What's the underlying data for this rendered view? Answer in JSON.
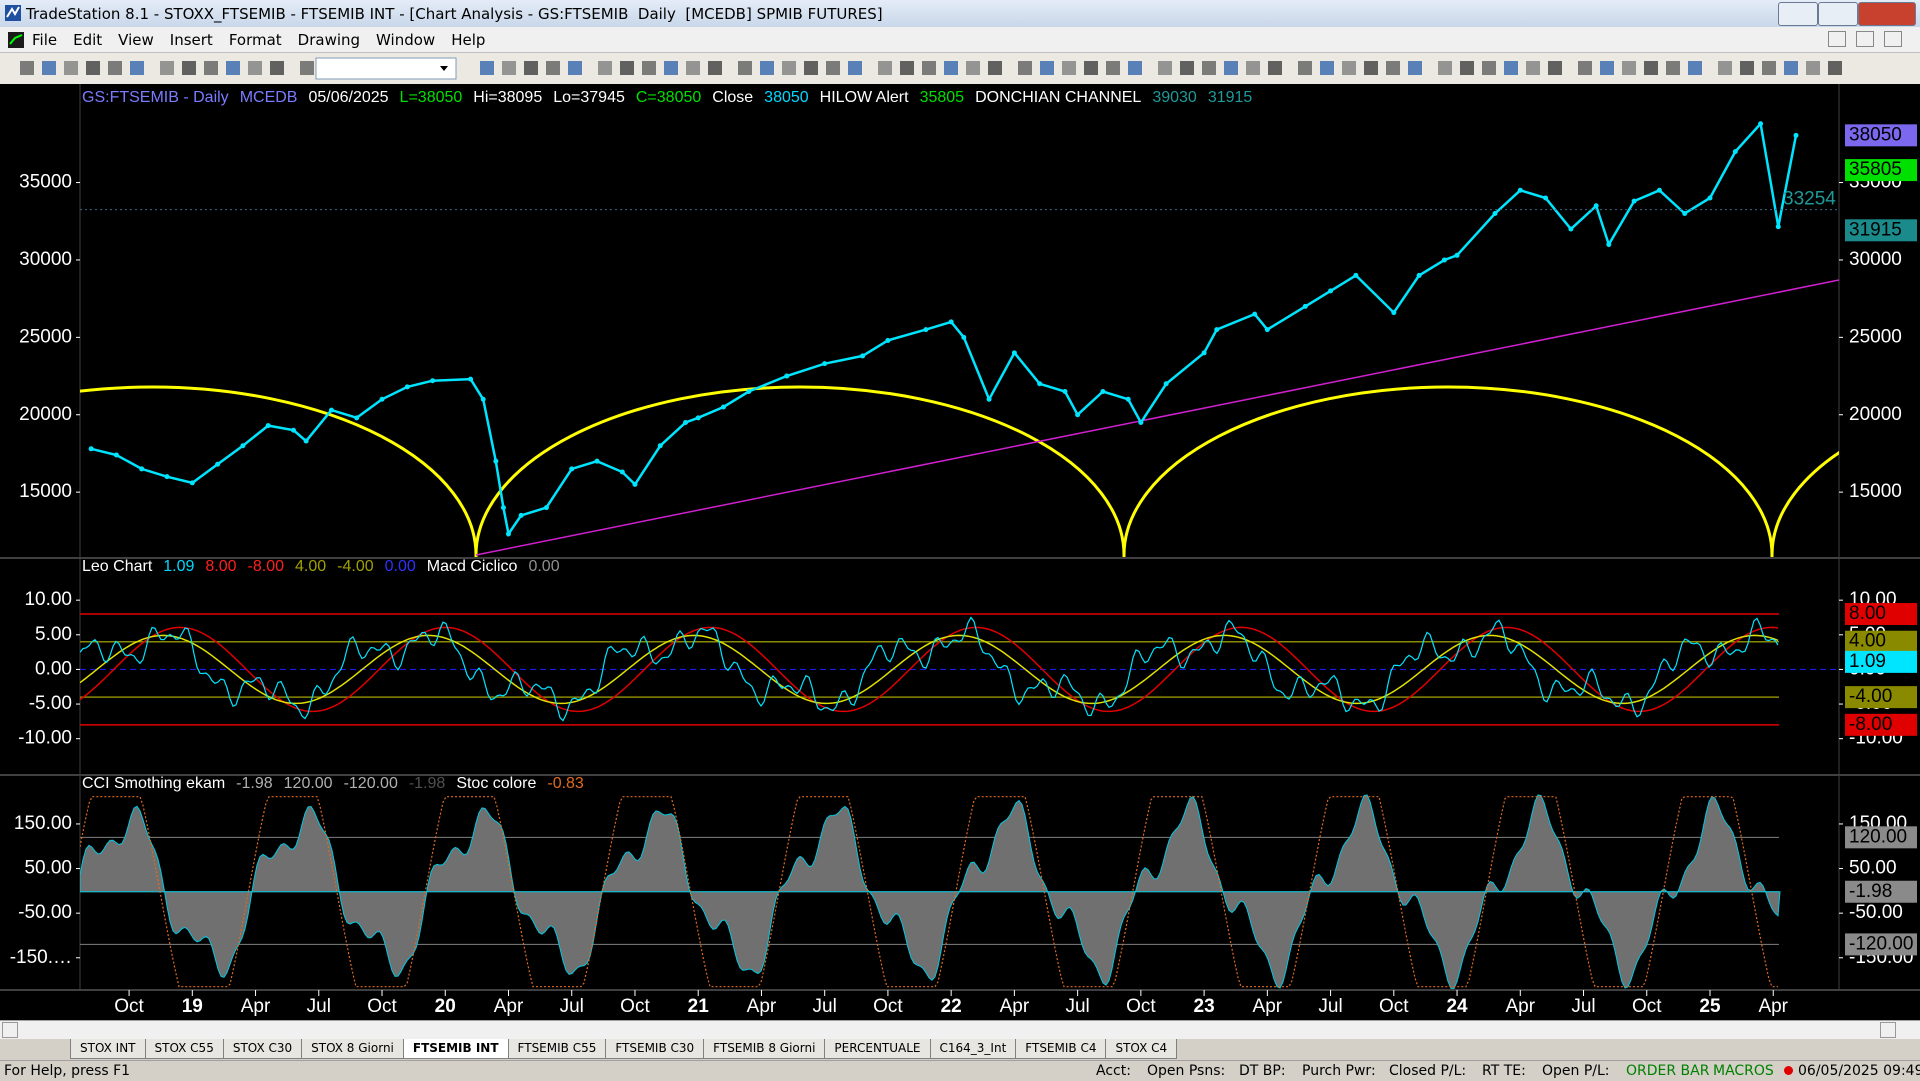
{
  "window": {
    "title": "TradeStation 8.1 - STOXX_FTSEMIB - FTSEMIB INT - [Chart Analysis - GS:FTSEMIB  Daily  [MCEDB] SPMIB FUTURES]"
  },
  "menu": [
    "File",
    "Edit",
    "View",
    "Insert",
    "Format",
    "Drawing",
    "Window",
    "Help"
  ],
  "chart": {
    "xlim": [
      2018.556,
      2025.51
    ],
    "xticks": [
      {
        "value": 2018.75,
        "label": "Oct"
      },
      {
        "value": 2019,
        "label": "19"
      },
      {
        "value": 2019.25,
        "label": "Apr"
      },
      {
        "value": 2019.5,
        "label": "Jul"
      },
      {
        "value": 2019.75,
        "label": "Oct"
      },
      {
        "value": 2020,
        "label": "20"
      },
      {
        "value": 2020.25,
        "label": "Apr"
      },
      {
        "value": 2020.5,
        "label": "Jul"
      },
      {
        "value": 2020.75,
        "label": "Oct"
      },
      {
        "value": 2021,
        "label": "21"
      },
      {
        "value": 2021.25,
        "label": "Apr"
      },
      {
        "value": 2021.5,
        "label": "Jul"
      },
      {
        "value": 2021.75,
        "label": "Oct"
      },
      {
        "value": 2022,
        "label": "22"
      },
      {
        "value": 2022.25,
        "label": "Apr"
      },
      {
        "value": 2022.5,
        "label": "Jul"
      },
      {
        "value": 2022.75,
        "label": "Oct"
      },
      {
        "value": 2023,
        "label": "23"
      },
      {
        "value": 2023.25,
        "label": "Apr"
      },
      {
        "value": 2023.5,
        "label": "Jul"
      },
      {
        "value": 2023.75,
        "label": "Oct"
      },
      {
        "value": 2024,
        "label": "24"
      },
      {
        "value": 2024.25,
        "label": "Apr"
      },
      {
        "value": 2024.5,
        "label": "Jul"
      },
      {
        "value": 2024.75,
        "label": "Oct"
      },
      {
        "value": 2025,
        "label": "25"
      },
      {
        "value": 2025.25,
        "label": "Apr"
      }
    ],
    "price_panel": {
      "header": [
        {
          "text": "GS:FTSEMIB - Daily",
          "color": "#7b7bff"
        },
        {
          "text": "MCEDB",
          "color": "#7b7bff"
        },
        {
          "text": "05/06/2025",
          "color": "#ffffff"
        },
        {
          "text": "L=38050",
          "color": "#00e000"
        },
        {
          "text": "Hi=38095",
          "color": "#ffffff"
        },
        {
          "text": "Lo=37945",
          "color": "#ffffff"
        },
        {
          "text": "C=38050",
          "color": "#00e000"
        },
        {
          "text": "Close",
          "color": "#ffffff"
        },
        {
          "text": "38050",
          "color": "#00d8ff"
        },
        {
          "text": "HILOW Alert",
          "color": "#ffffff"
        },
        {
          "text": "35805",
          "color": "#00e000"
        },
        {
          "text": "DONCHIAN CHANNEL",
          "color": "#ffffff"
        },
        {
          "text": "39030",
          "color": "#1e9a9a"
        },
        {
          "text": "31915",
          "color": "#1e9a9a"
        }
      ],
      "ylim": [
        10810,
        40850
      ],
      "yticks": [
        35000,
        30000,
        25000,
        20000,
        15000
      ],
      "right_labels": [
        {
          "value": 38050,
          "color": "#7b68ee",
          "box": true
        },
        {
          "value": 35805,
          "color": "#00e000",
          "box": true
        },
        {
          "value": 33254,
          "color": "#1e9a9a",
          "box": false
        },
        {
          "value": 31915,
          "color": "#1a8a8a",
          "box": true
        }
      ],
      "price": {
        "color": "#00e5ff",
        "x": [
          2018.6,
          2018.7,
          2018.8,
          2018.9,
          2019.0,
          2019.1,
          2019.2,
          2019.3,
          2019.4,
          2019.45,
          2019.55,
          2019.65,
          2019.75,
          2019.85,
          2019.95,
          2020.1,
          2020.15,
          2020.2,
          2020.23,
          2020.25,
          2020.3,
          2020.4,
          2020.5,
          2020.6,
          2020.7,
          2020.75,
          2020.85,
          2020.95,
          2021.0,
          2021.1,
          2021.2,
          2021.35,
          2021.5,
          2021.65,
          2021.75,
          2021.9,
          2022.0,
          2022.05,
          2022.15,
          2022.25,
          2022.35,
          2022.45,
          2022.5,
          2022.6,
          2022.7,
          2022.75,
          2022.85,
          2023.0,
          2023.05,
          2023.2,
          2023.25,
          2023.4,
          2023.5,
          2023.6,
          2023.75,
          2023.85,
          2023.95,
          2024.0,
          2024.15,
          2024.25,
          2024.35,
          2024.45,
          2024.55,
          2024.6,
          2024.7,
          2024.8,
          2024.9,
          2025.0,
          2025.1,
          2025.2,
          2025.27,
          2025.34
        ],
        "values": [
          17800,
          17400,
          16500,
          16000,
          15600,
          16800,
          18000,
          19300,
          19000,
          18300,
          20300,
          19800,
          21000,
          21800,
          22200,
          22300,
          21000,
          17000,
          14000,
          12300,
          13500,
          14000,
          16500,
          17000,
          16300,
          15500,
          18000,
          19500,
          19800,
          20500,
          21500,
          22500,
          23300,
          23800,
          24800,
          25500,
          26000,
          25000,
          21000,
          24000,
          22000,
          21500,
          20000,
          21500,
          21000,
          19500,
          22000,
          24000,
          25500,
          26500,
          25500,
          27000,
          28000,
          29000,
          26600,
          29000,
          30000,
          30300,
          33000,
          34500,
          34000,
          32000,
          33500,
          31000,
          33800,
          34500,
          33000,
          34000,
          37000,
          38800,
          32150,
          38050
        ]
      }
    },
    "osc_panel": {
      "header": [
        {
          "text": "Leo Chart",
          "color": "#ffffff"
        },
        {
          "text": "1.09",
          "color": "#00d8ff"
        },
        {
          "text": "8.00",
          "color": "#ff2020"
        },
        {
          "text": "-8.00",
          "color": "#ff2020"
        },
        {
          "text": "4.00",
          "color": "#a0a000"
        },
        {
          "text": "-4.00",
          "color": "#a0a000"
        },
        {
          "text": "0.00",
          "color": "#3030ff"
        },
        {
          "text": "Macd Ciclico",
          "color": "#ffffff"
        },
        {
          "text": "0.00",
          "color": "#909090"
        }
      ],
      "ylim": [
        -15.1,
        15.8
      ],
      "yticks": [
        {
          "value": 10,
          "label": "10.00"
        },
        {
          "value": 5,
          "label": "5.00"
        },
        {
          "value": 0,
          "label": "0.00"
        },
        {
          "value": -5,
          "label": "-5.00"
        },
        {
          "value": -10,
          "label": "-10.00"
        }
      ],
      "right_labels": [
        {
          "value": 8,
          "label": "8.00",
          "color": "#e00000"
        },
        {
          "value": 4,
          "label": "4.00",
          "color": "#8a8a00"
        },
        {
          "value": 1.09,
          "label": "1.09",
          "color": "#00e5ff"
        },
        {
          "value": -4,
          "label": "-4.00",
          "color": "#8a8a00"
        },
        {
          "value": -8,
          "label": "-8.00",
          "color": "#e00000"
        }
      ]
    },
    "cci_panel": {
      "header": [
        {
          "text": "CCI Smothing ekam",
          "color": "#ffffff"
        },
        {
          "text": "-1.98",
          "color": "#b0b0b0"
        },
        {
          "text": "120.00",
          "color": "#b0b0b0"
        },
        {
          "text": "-120.00",
          "color": "#b0b0b0"
        },
        {
          "text": "-1.98",
          "color": "#505050"
        },
        {
          "text": "Stoc colore",
          "color": "#ffffff"
        },
        {
          "text": "-0.83",
          "color": "#e06a20"
        }
      ],
      "ylim": [
        -220,
        253
      ],
      "yticks": [
        {
          "value": 150,
          "label": "150.00"
        },
        {
          "value": 50,
          "label": "50.00"
        },
        {
          "value": -50,
          "label": "-50.00"
        },
        {
          "value": -150,
          "label": "-150.…"
        }
      ],
      "right_ticks": [
        {
          "value": 150,
          "label": "150.00"
        },
        {
          "value": 50,
          "label": "50.00"
        },
        {
          "value": -50,
          "label": "-50.00"
        },
        {
          "value": -150,
          "label": "-150.00"
        }
      ],
      "right_labels": [
        {
          "value": 120,
          "label": "120.00"
        },
        {
          "value": -1.98,
          "label": "-1.98"
        },
        {
          "value": -120,
          "label": "-120.00"
        }
      ]
    }
  },
  "tabs": [
    "STOX INT",
    "STOX C55",
    "STOX C30",
    "STOX 8 Giorni",
    "FTSEMIB INT",
    "FTSEMIB C55",
    "FTSEMIB C30",
    "FTSEMIB 8 Giorni",
    "PERCENTUALE",
    "C164_3_Int",
    "FTSEMIB C4",
    "STOX C4"
  ],
  "status": {
    "help": "For Help, press F1",
    "acct": "Acct:",
    "open_psns": "Open Psns:",
    "dt_bp": "DT BP:",
    "purch_pwr": "Purch Pwr:",
    "closed_pl": "Closed P/L:",
    "rt_te": "RT TE:",
    "open_pl": "Open P/L:",
    "order_bar": "ORDER BAR",
    "macros": "MACROS",
    "datetime": "06/05/2025 09:49"
  }
}
